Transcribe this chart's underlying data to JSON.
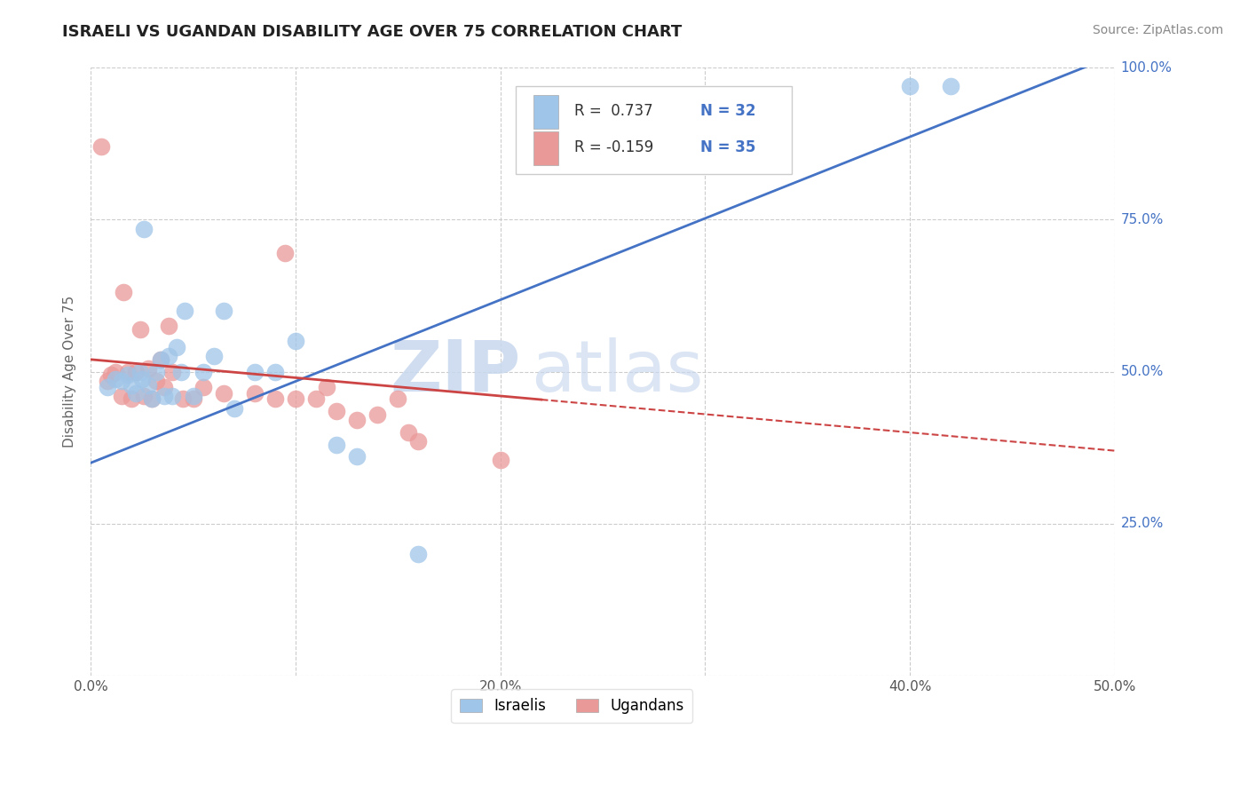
{
  "title": "ISRAELI VS UGANDAN DISABILITY AGE OVER 75 CORRELATION CHART",
  "ylabel": "Disability Age Over 75",
  "source": "Source: ZipAtlas.com",
  "xlim": [
    0.0,
    0.5
  ],
  "ylim": [
    0.0,
    1.0
  ],
  "xticks": [
    0.0,
    0.1,
    0.2,
    0.3,
    0.4,
    0.5
  ],
  "xticklabels": [
    "0.0%",
    "",
    "20.0%",
    "",
    "40.0%",
    "50.0%"
  ],
  "yticks": [
    0.25,
    0.5,
    0.75,
    1.0
  ],
  "yticklabels": [
    "25.0%",
    "50.0%",
    "75.0%",
    "100.0%"
  ],
  "legend_R_blue": "R =  0.737",
  "legend_N_blue": "N = 32",
  "legend_R_pink": "R = -0.159",
  "legend_N_pink": "N = 35",
  "blue_color": "#9fc5e8",
  "pink_color": "#ea9999",
  "blue_line_color": "#4472c4",
  "pink_line_color": "#cc4444",
  "grid_color": "#cccccc",
  "watermark_ZIP": "ZIP",
  "watermark_atlas": "atlas",
  "israelis_x": [
    0.008,
    0.012,
    0.015,
    0.018,
    0.02,
    0.022,
    0.024,
    0.025,
    0.026,
    0.028,
    0.03,
    0.032,
    0.034,
    0.036,
    0.038,
    0.04,
    0.042,
    0.044,
    0.046,
    0.05,
    0.055,
    0.06,
    0.065,
    0.07,
    0.08,
    0.09,
    0.1,
    0.12,
    0.13,
    0.16,
    0.4,
    0.42
  ],
  "israelis_y": [
    0.475,
    0.488,
    0.485,
    0.495,
    0.478,
    0.465,
    0.5,
    0.488,
    0.735,
    0.478,
    0.455,
    0.5,
    0.52,
    0.46,
    0.525,
    0.46,
    0.54,
    0.5,
    0.6,
    0.46,
    0.5,
    0.525,
    0.6,
    0.44,
    0.5,
    0.5,
    0.55,
    0.38,
    0.36,
    0.2,
    0.97,
    0.97
  ],
  "ugandans_x": [
    0.005,
    0.008,
    0.01,
    0.012,
    0.015,
    0.016,
    0.018,
    0.02,
    0.022,
    0.024,
    0.026,
    0.028,
    0.03,
    0.032,
    0.034,
    0.036,
    0.038,
    0.04,
    0.045,
    0.05,
    0.055,
    0.065,
    0.08,
    0.09,
    0.095,
    0.1,
    0.11,
    0.115,
    0.12,
    0.13,
    0.14,
    0.15,
    0.155,
    0.16,
    0.2
  ],
  "ugandans_y": [
    0.87,
    0.485,
    0.495,
    0.5,
    0.46,
    0.63,
    0.5,
    0.455,
    0.5,
    0.57,
    0.46,
    0.505,
    0.455,
    0.485,
    0.52,
    0.475,
    0.575,
    0.5,
    0.455,
    0.455,
    0.475,
    0.465,
    0.465,
    0.455,
    0.695,
    0.455,
    0.455,
    0.475,
    0.435,
    0.42,
    0.43,
    0.455,
    0.4,
    0.385,
    0.355
  ]
}
